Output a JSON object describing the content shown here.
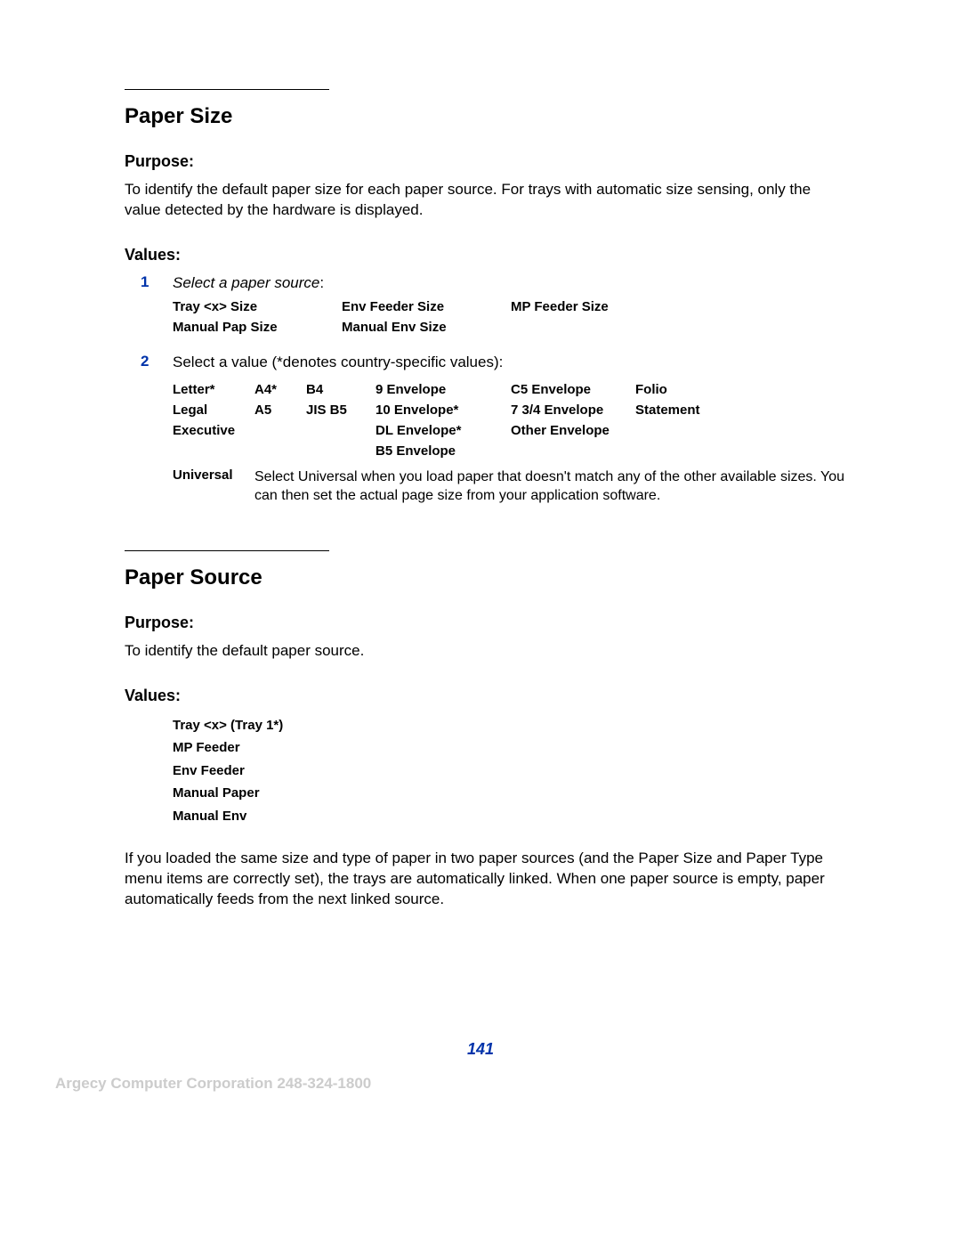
{
  "section1": {
    "title": "Paper Size",
    "purpose_label": "Purpose:",
    "purpose_text": "To identify the default paper size for each paper source. For trays with automatic size sensing, only the value detected by the hardware is displayed.",
    "values_label": "Values:",
    "step1_num": "1",
    "step1_text_ital": "Select a paper source",
    "step1_text_colon": ":",
    "sources": {
      "r0c0": "Tray <x> Size",
      "r0c1": "Env Feeder Size",
      "r0c2": "MP Feeder Size",
      "r1c0": "Manual Pap Size",
      "r1c1": "Manual Env Size",
      "r1c2": ""
    },
    "step2_num": "2",
    "step2_text": "Select a value (*denotes country-specific values):",
    "grid": {
      "r0": [
        "Letter*",
        "A4*",
        "B4",
        "9 Envelope",
        "C5 Envelope",
        "Folio"
      ],
      "r1": [
        "Legal",
        "A5",
        "JIS B5",
        "10 Envelope*",
        "7 3/4 Envelope",
        "Statement"
      ],
      "r2": [
        "Executive",
        "",
        "",
        "DL Envelope*",
        "Other Envelope",
        ""
      ],
      "r3": [
        "",
        "",
        "",
        "B5 Envelope",
        "",
        ""
      ]
    },
    "universal_label": "Universal",
    "universal_text": "Select Universal when you load paper that doesn't match any of the other available sizes. You can then set the actual page size from your application software."
  },
  "section2": {
    "title": "Paper Source",
    "purpose_label": "Purpose:",
    "purpose_text": "To identify the default paper source.",
    "values_label": "Values:",
    "list": [
      "Tray <x> (Tray 1*)",
      "MP Feeder",
      "Env Feeder",
      "Manual Paper",
      "Manual Env"
    ],
    "note": "If you loaded the same size and type of paper in two paper sources (and the Paper Size and Paper Type menu items are correctly set), the trays are automatically linked. When one paper source is empty, paper automatically feeds from the next linked source."
  },
  "page_number": "141",
  "footer": "Argecy Computer Corporation 248-324-1800"
}
